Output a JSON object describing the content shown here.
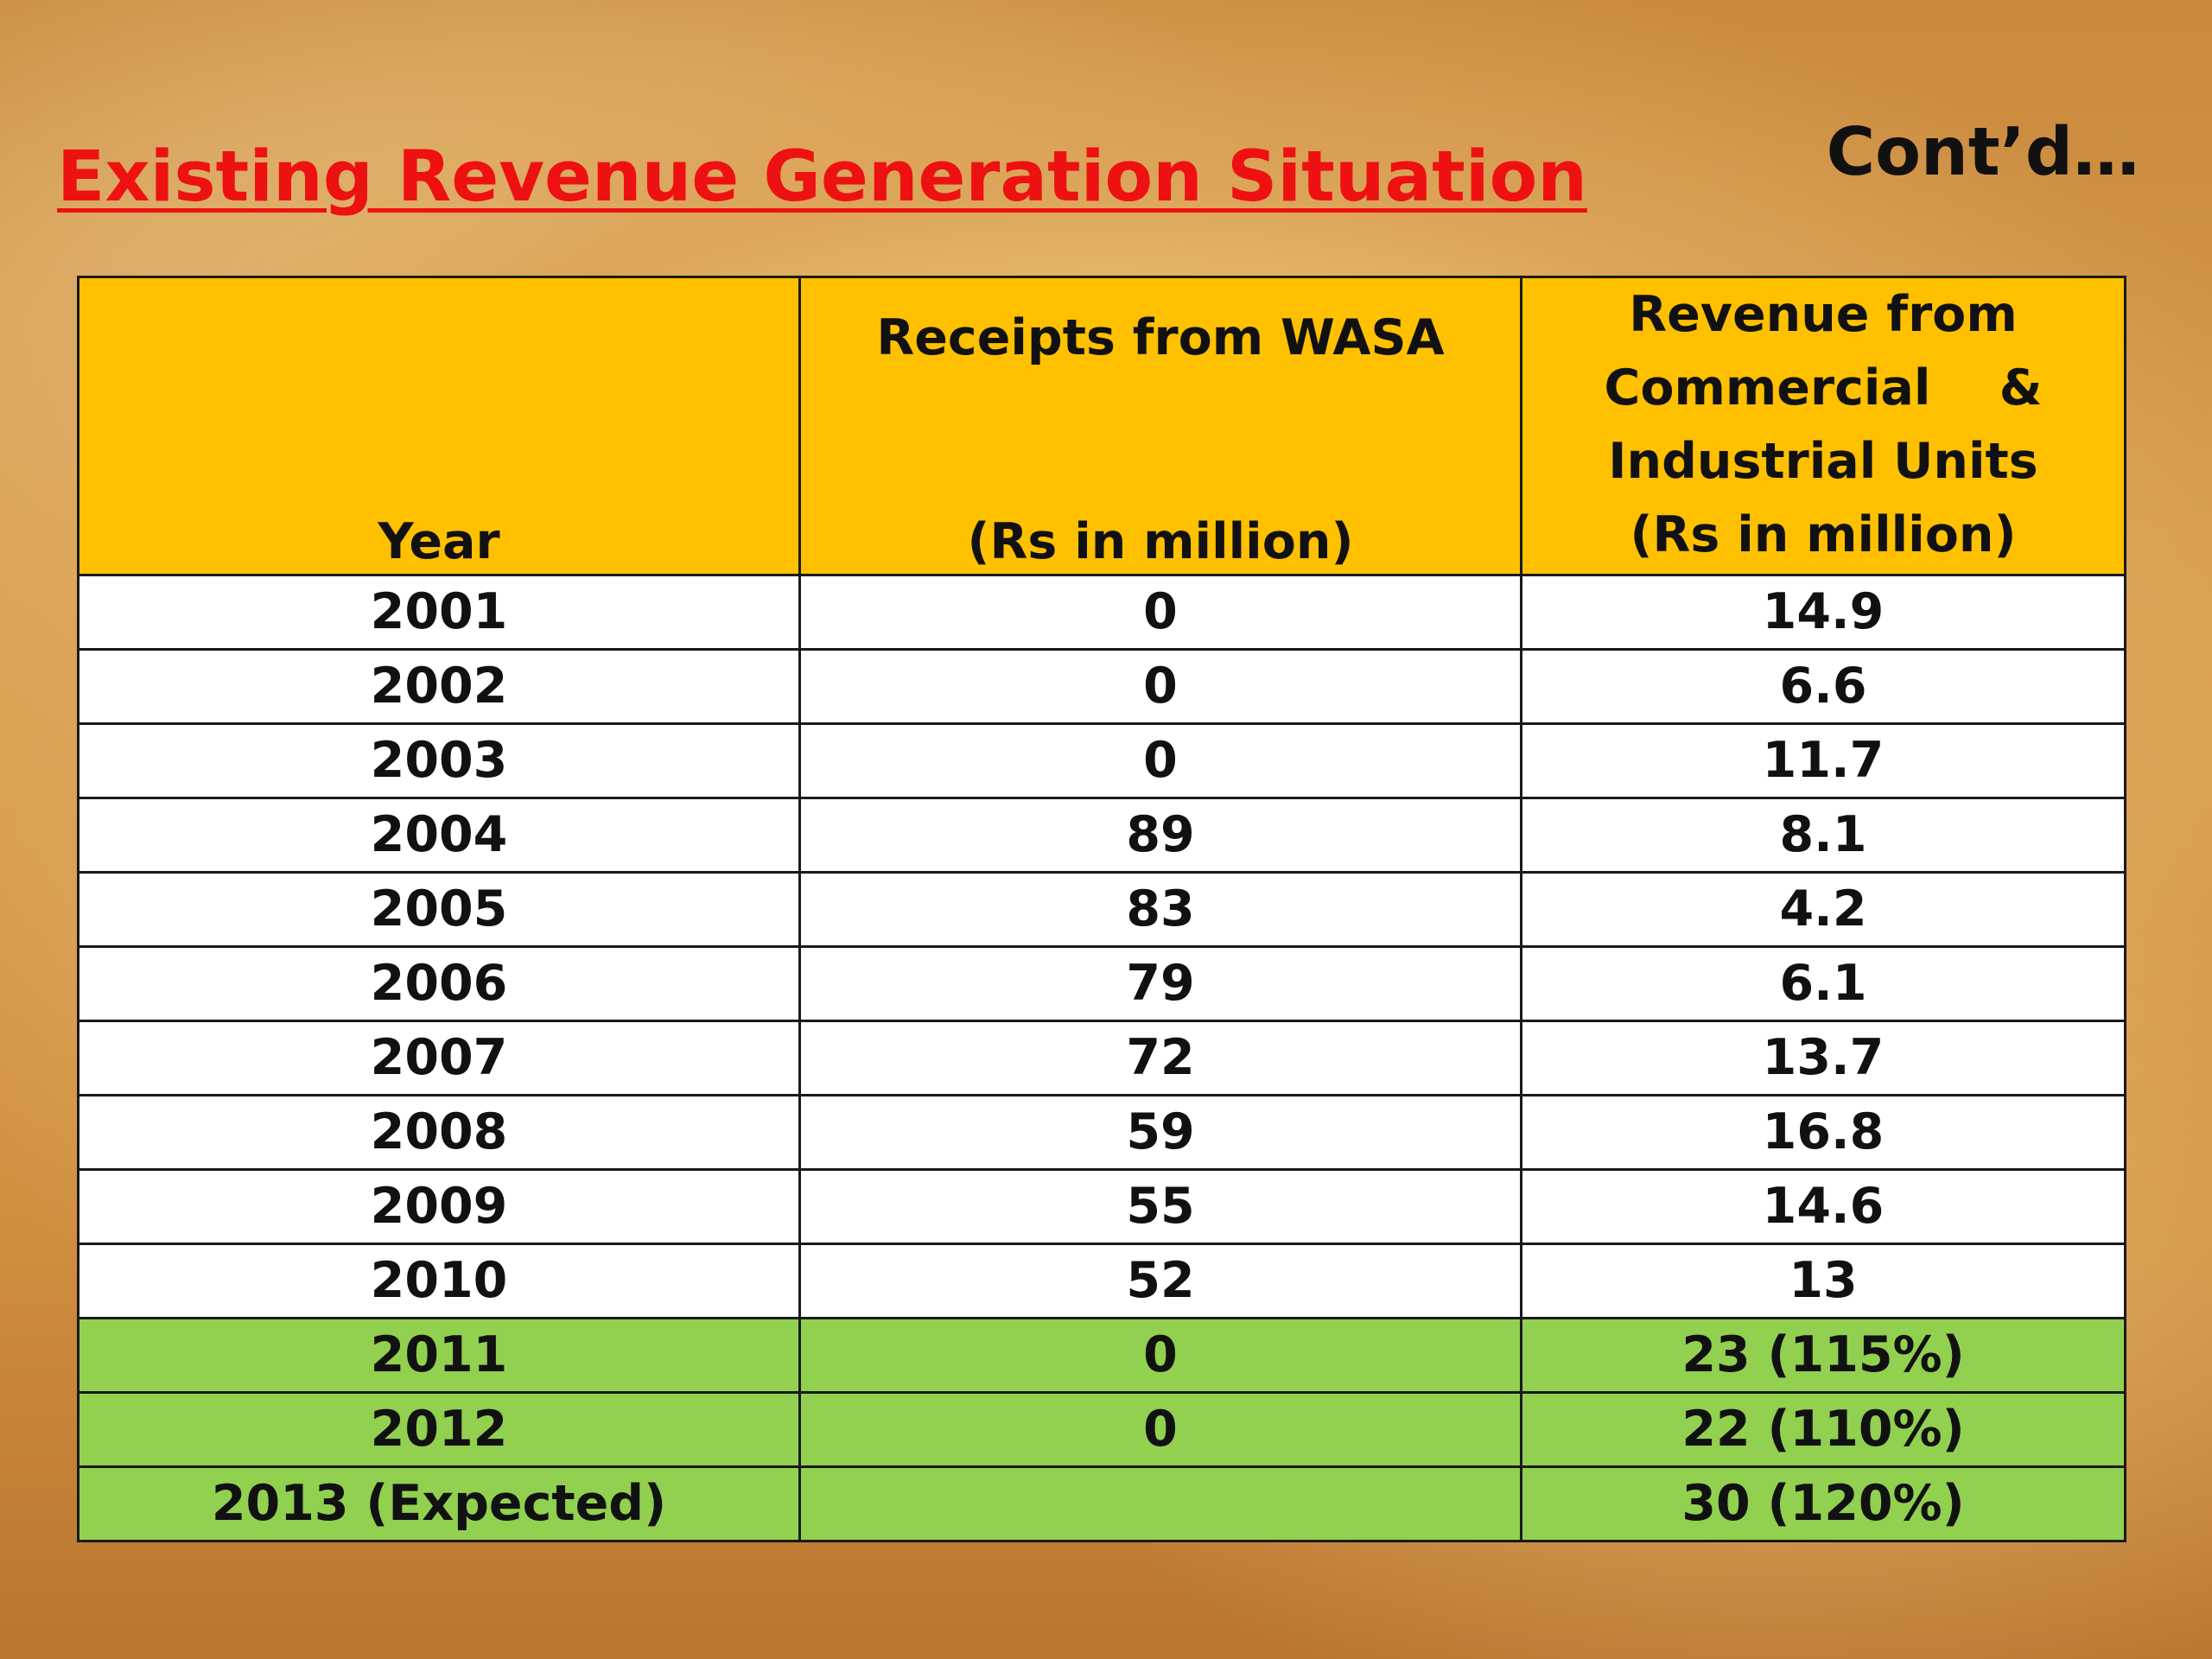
{
  "slide": {
    "title": "Existing Revenue Generation Situation",
    "continued_marker": "Cont’d…"
  },
  "table": {
    "headers": {
      "year": "Year",
      "wasa_line1": "Receipts from WASA",
      "wasa_line2": "(Rs in million)",
      "commercial_line1": "Revenue from",
      "commercial_line2": "Commercial    &",
      "commercial_line3": "Industrial Units",
      "commercial_line4": "(Rs in million)"
    },
    "rows": [
      {
        "year": "2001",
        "wasa": "0",
        "commercial": "14.9"
      },
      {
        "year": "2002",
        "wasa": "0",
        "commercial": "6.6"
      },
      {
        "year": "2003",
        "wasa": "0",
        "commercial": "11.7"
      },
      {
        "year": "2004",
        "wasa": "89",
        "commercial": "8.1"
      },
      {
        "year": "2005",
        "wasa": "83",
        "commercial": "4.2"
      },
      {
        "year": "2006",
        "wasa": "79",
        "commercial": "6.1"
      },
      {
        "year": "2007",
        "wasa": "72",
        "commercial": "13.7"
      },
      {
        "year": "2008",
        "wasa": "59",
        "commercial": "16.8"
      },
      {
        "year": "2009",
        "wasa": "55",
        "commercial": "14.6"
      },
      {
        "year": "2010",
        "wasa": "52",
        "commercial": "13"
      },
      {
        "year": "2011",
        "wasa": "0",
        "commercial": "23 (115%)"
      },
      {
        "year": "2012",
        "wasa": "0",
        "commercial": "22 (110%)"
      },
      {
        "year": "2013 (Expected)",
        "wasa": "",
        "commercial": "30 (120%)"
      }
    ],
    "colors": {
      "header_bg": "#ffc000",
      "row_bg": "#ffffff",
      "highlight_bg": "#92d050",
      "title_color": "#ee1111"
    }
  }
}
